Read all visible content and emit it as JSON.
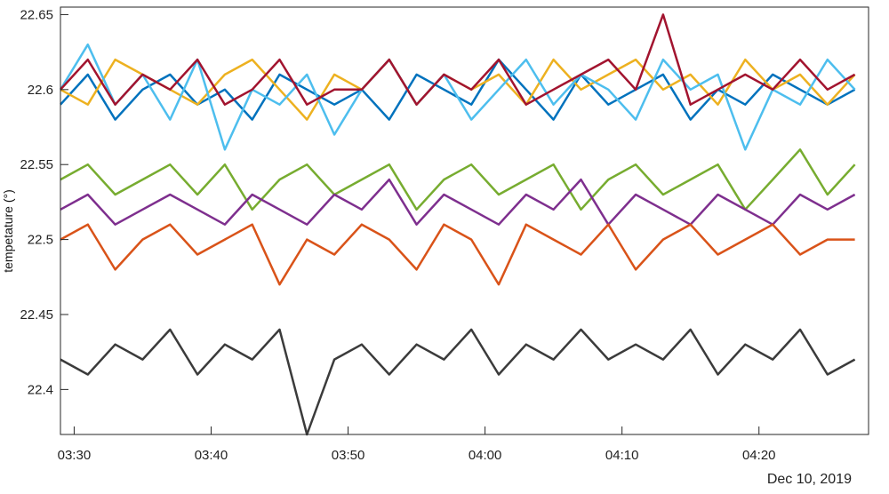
{
  "chart_data": {
    "type": "line",
    "title": "",
    "xlabel": "",
    "ylabel": "tempetature  (°)",
    "date_label": "Dec 10, 2019",
    "xlim": [
      "03:29",
      "04:28"
    ],
    "ylim": [
      22.37,
      22.655
    ],
    "grid": false,
    "x_ticks": [
      "03:30",
      "03:40",
      "03:50",
      "04:00",
      "04:10",
      "04:20"
    ],
    "y_ticks": [
      "22.4",
      "22.45",
      "22.5",
      "22.55",
      "22.6",
      "22.65"
    ],
    "x": [
      "03:29",
      "03:31",
      "03:33",
      "03:35",
      "03:37",
      "03:39",
      "03:41",
      "03:43",
      "03:45",
      "03:47",
      "03:49",
      "03:51",
      "03:53",
      "03:55",
      "03:57",
      "03:59",
      "04:01",
      "04:03",
      "04:05",
      "04:07",
      "04:09",
      "04:11",
      "04:13",
      "04:15",
      "04:17",
      "04:19",
      "04:21",
      "04:23",
      "04:25",
      "04:27"
    ],
    "series": [
      {
        "color": "#0072BD",
        "values": [
          22.59,
          22.61,
          22.58,
          22.6,
          22.61,
          22.59,
          22.6,
          22.58,
          22.61,
          22.6,
          22.59,
          22.6,
          22.58,
          22.61,
          22.6,
          22.59,
          22.62,
          22.6,
          22.58,
          22.61,
          22.59,
          22.6,
          22.61,
          22.58,
          22.6,
          22.59,
          22.61,
          22.6,
          22.59,
          22.6
        ]
      },
      {
        "color": "#EDB120",
        "values": [
          22.6,
          22.59,
          22.62,
          22.61,
          22.6,
          22.59,
          22.61,
          22.62,
          22.6,
          22.58,
          22.61,
          22.6,
          22.62,
          22.59,
          22.61,
          22.6,
          22.61,
          22.59,
          22.62,
          22.6,
          22.61,
          22.62,
          22.6,
          22.61,
          22.59,
          22.62,
          22.6,
          22.61,
          22.59,
          22.61
        ]
      },
      {
        "color": "#4DBEEE",
        "values": [
          22.6,
          22.63,
          22.59,
          22.61,
          22.58,
          22.62,
          22.56,
          22.6,
          22.59,
          22.61,
          22.57,
          22.6,
          22.62,
          22.59,
          22.61,
          22.58,
          22.6,
          22.62,
          22.59,
          22.61,
          22.6,
          22.58,
          22.62,
          22.6,
          22.61,
          22.56,
          22.6,
          22.59,
          22.62,
          22.6
        ]
      },
      {
        "color": "#A2142F",
        "values": [
          22.6,
          22.62,
          22.59,
          22.61,
          22.6,
          22.62,
          22.59,
          22.6,
          22.62,
          22.59,
          22.6,
          22.6,
          22.62,
          22.59,
          22.61,
          22.6,
          22.62,
          22.59,
          22.6,
          22.61,
          22.62,
          22.6,
          22.65,
          22.59,
          22.6,
          22.61,
          22.6,
          22.62,
          22.6,
          22.61
        ]
      },
      {
        "color": "#77AC30",
        "values": [
          22.54,
          22.55,
          22.53,
          22.54,
          22.55,
          22.53,
          22.55,
          22.52,
          22.54,
          22.55,
          22.53,
          22.54,
          22.55,
          22.52,
          22.54,
          22.55,
          22.53,
          22.54,
          22.55,
          22.52,
          22.54,
          22.55,
          22.53,
          22.54,
          22.55,
          22.52,
          22.54,
          22.56,
          22.53,
          22.55
        ]
      },
      {
        "color": "#7E2F8E",
        "values": [
          22.52,
          22.53,
          22.51,
          22.52,
          22.53,
          22.52,
          22.51,
          22.53,
          22.52,
          22.51,
          22.53,
          22.52,
          22.54,
          22.51,
          22.53,
          22.52,
          22.51,
          22.53,
          22.52,
          22.54,
          22.51,
          22.53,
          22.52,
          22.51,
          22.53,
          22.52,
          22.51,
          22.53,
          22.52,
          22.53
        ]
      },
      {
        "color": "#D95319",
        "values": [
          22.5,
          22.51,
          22.48,
          22.5,
          22.51,
          22.49,
          22.5,
          22.51,
          22.47,
          22.5,
          22.49,
          22.51,
          22.5,
          22.48,
          22.51,
          22.5,
          22.47,
          22.51,
          22.5,
          22.49,
          22.51,
          22.48,
          22.5,
          22.51,
          22.49,
          22.5,
          22.51,
          22.49,
          22.5,
          22.5
        ]
      },
      {
        "color": "#3B3B3B",
        "values": [
          22.42,
          22.41,
          22.43,
          22.42,
          22.44,
          22.41,
          22.43,
          22.42,
          22.44,
          22.37,
          22.42,
          22.43,
          22.41,
          22.43,
          22.42,
          22.44,
          22.41,
          22.43,
          22.42,
          22.44,
          22.42,
          22.43,
          22.42,
          22.44,
          22.41,
          22.43,
          22.42,
          22.44,
          22.41,
          22.42
        ]
      }
    ]
  }
}
